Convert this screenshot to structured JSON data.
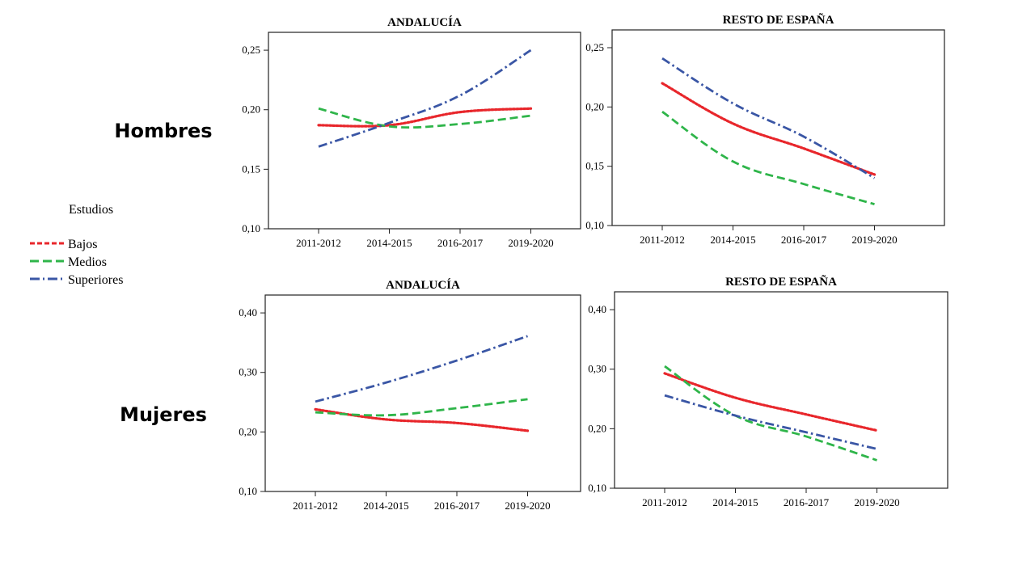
{
  "row_labels": {
    "top": "Hombres",
    "bottom": "Mujeres"
  },
  "legend": {
    "title": "Estudios",
    "items": [
      {
        "label": "Bajos",
        "color": "#e8262b",
        "dash": "dotted"
      },
      {
        "label": "Medios",
        "color": "#2fb54a",
        "dash": "dashed"
      },
      {
        "label": "Superiores",
        "color": "#3a56a5",
        "dash": "dashdot"
      }
    ]
  },
  "chart_data": [
    {
      "type": "line",
      "title": "ANDALUCÍA",
      "categories": [
        "2011-2012",
        "2014-2015",
        "2016-2017",
        "2019-2020"
      ],
      "ylim": [
        0.1,
        0.265
      ],
      "yticks": [
        0.1,
        0.15,
        0.2,
        0.25
      ],
      "ytick_labels": [
        "0,10",
        "0,15",
        "0,20",
        "0,25"
      ],
      "series": [
        {
          "name": "Bajos",
          "values": [
            0.187,
            0.187,
            0.198,
            0.201
          ]
        },
        {
          "name": "Medios",
          "values": [
            0.201,
            0.186,
            0.188,
            0.195
          ]
        },
        {
          "name": "Superiores",
          "values": [
            0.169,
            0.189,
            0.212,
            0.25
          ]
        }
      ]
    },
    {
      "type": "line",
      "title": "RESTO DE ESPAÑA",
      "categories": [
        "2011-2012",
        "2014-2015",
        "2016-2017",
        "2019-2020"
      ],
      "ylim": [
        0.1,
        0.265
      ],
      "yticks": [
        0.1,
        0.15,
        0.2,
        0.25
      ],
      "ytick_labels": [
        "0,10",
        "0,15",
        "0,20",
        "0,25"
      ],
      "series": [
        {
          "name": "Bajos",
          "values": [
            0.22,
            0.186,
            0.165,
            0.143
          ]
        },
        {
          "name": "Medios",
          "values": [
            0.196,
            0.154,
            0.135,
            0.118
          ]
        },
        {
          "name": "Superiores",
          "values": [
            0.241,
            0.203,
            0.175,
            0.14
          ]
        }
      ]
    },
    {
      "type": "line",
      "title": "ANDALUCÍA",
      "categories": [
        "2011-2012",
        "2014-2015",
        "2016-2017",
        "2019-2020"
      ],
      "ylim": [
        0.1,
        0.43
      ],
      "yticks": [
        0.1,
        0.2,
        0.3,
        0.4
      ],
      "ytick_labels": [
        "0,10",
        "0,20",
        "0,30",
        "0,40"
      ],
      "series": [
        {
          "name": "Bajos",
          "values": [
            0.238,
            0.221,
            0.215,
            0.202
          ]
        },
        {
          "name": "Medios",
          "values": [
            0.233,
            0.228,
            0.24,
            0.255
          ]
        },
        {
          "name": "Superiores",
          "values": [
            0.251,
            0.283,
            0.32,
            0.361
          ]
        }
      ]
    },
    {
      "type": "line",
      "title": "RESTO DE ESPAÑA",
      "categories": [
        "2011-2012",
        "2014-2015",
        "2016-2017",
        "2019-2020"
      ],
      "ylim": [
        0.1,
        0.43
      ],
      "yticks": [
        0.1,
        0.2,
        0.3,
        0.4
      ],
      "ytick_labels": [
        "0,10",
        "0,20",
        "0,30",
        "0,40"
      ],
      "series": [
        {
          "name": "Bajos",
          "values": [
            0.293,
            0.252,
            0.224,
            0.197
          ]
        },
        {
          "name": "Medios",
          "values": [
            0.305,
            0.222,
            0.187,
            0.147
          ]
        },
        {
          "name": "Superiores",
          "values": [
            0.256,
            0.222,
            0.194,
            0.166
          ]
        }
      ]
    }
  ]
}
